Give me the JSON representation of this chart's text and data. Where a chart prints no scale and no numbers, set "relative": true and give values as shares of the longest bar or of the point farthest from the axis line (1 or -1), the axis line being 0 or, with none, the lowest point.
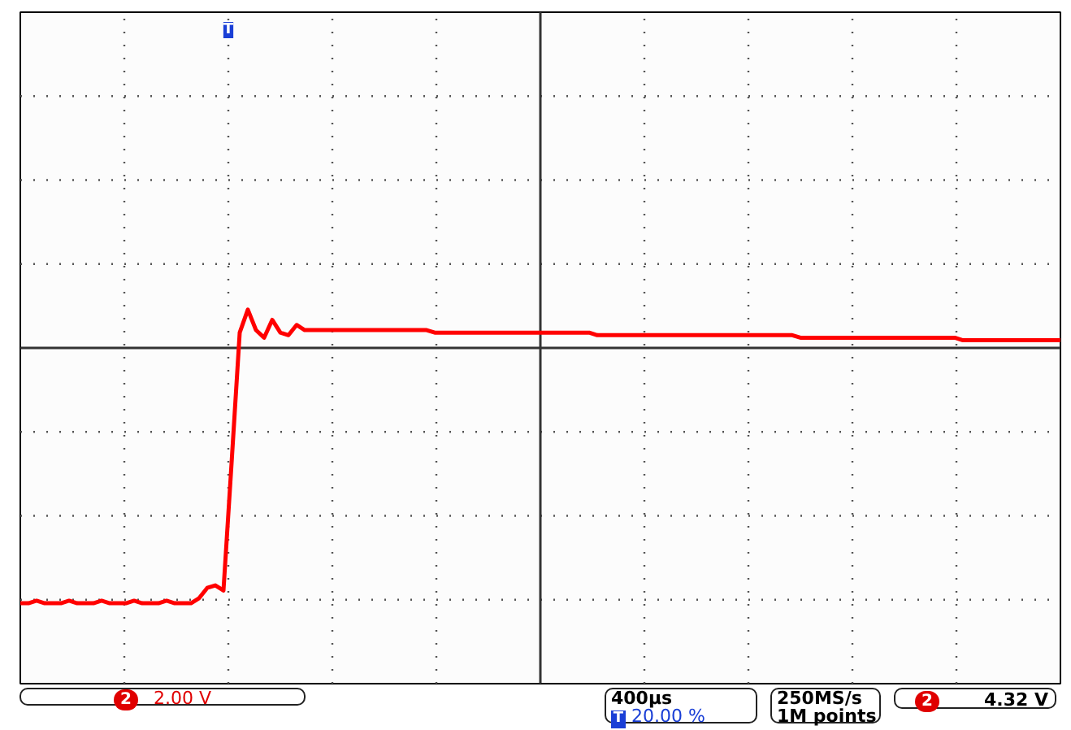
{
  "chart_data": {
    "type": "line",
    "relative": true,
    "grid": true,
    "line_style": "solid",
    "categories": [
      null,
      null,
      null,
      null,
      null,
      null,
      null,
      null,
      null,
      null,
      null,
      null,
      null,
      null,
      null,
      null,
      null,
      null,
      null,
      null,
      null,
      null,
      null,
      null,
      null,
      null,
      null,
      null,
      null,
      null,
      null,
      null,
      null,
      null,
      null,
      null,
      null,
      null,
      null,
      null,
      null,
      null,
      null,
      null,
      null,
      null,
      null,
      null,
      null,
      null,
      null,
      null,
      null,
      null,
      null,
      null,
      null,
      null,
      null,
      null,
      null,
      null,
      null,
      null,
      null,
      null,
      null,
      null,
      null,
      null,
      null,
      null,
      null,
      null,
      null,
      null,
      null,
      null,
      null,
      null,
      null,
      null,
      null,
      null,
      null,
      null,
      null,
      null,
      null,
      null,
      null,
      null,
      null,
      null,
      null,
      null,
      null,
      null,
      null,
      null,
      null,
      null,
      null,
      null,
      null,
      null,
      null,
      null,
      null,
      null,
      null,
      null,
      null,
      null,
      null,
      null,
      null,
      null,
      null,
      null,
      null,
      null,
      null,
      null,
      null,
      null,
      null,
      null,
      null
    ],
    "series": [
      {
        "color": "#ff0000",
        "values": [
          -1.0,
          -1.0,
          -0.99,
          -1.0,
          -1.0,
          -1.0,
          -0.99,
          -1.0,
          -1.0,
          -1.0,
          -0.99,
          -1.0,
          -1.0,
          -1.0,
          -0.99,
          -1.0,
          -1.0,
          -1.0,
          -0.99,
          -1.0,
          -1.0,
          -1.0,
          -0.98,
          -0.94,
          -0.93,
          -0.95,
          -0.45,
          0.06,
          0.15,
          0.07,
          0.04,
          0.11,
          0.06,
          0.05,
          0.09,
          0.07,
          0.07,
          0.07,
          0.07,
          0.07,
          0.07,
          0.07,
          0.07,
          0.07,
          0.07,
          0.07,
          0.07,
          0.07,
          0.07,
          0.07,
          0.07,
          0.06,
          0.06,
          0.06,
          0.06,
          0.06,
          0.06,
          0.06,
          0.06,
          0.06,
          0.06,
          0.06,
          0.06,
          0.06,
          0.06,
          0.06,
          0.06,
          0.06,
          0.06,
          0.06,
          0.06,
          0.05,
          0.05,
          0.05,
          0.05,
          0.05,
          0.05,
          0.05,
          0.05,
          0.05,
          0.05,
          0.05,
          0.05,
          0.05,
          0.05,
          0.05,
          0.05,
          0.05,
          0.05,
          0.05,
          0.05,
          0.05,
          0.05,
          0.05,
          0.05,
          0.05,
          0.04,
          0.04,
          0.04,
          0.04,
          0.04,
          0.04,
          0.04,
          0.04,
          0.04,
          0.04,
          0.04,
          0.04,
          0.04,
          0.04,
          0.04,
          0.04,
          0.04,
          0.04,
          0.04,
          0.04,
          0.03,
          0.03,
          0.03,
          0.03,
          0.03,
          0.03,
          0.03,
          0.03,
          0.03,
          0.03,
          0.03,
          0.03,
          0.03
        ]
      }
    ],
    "annotations": [
      "T",
      "2",
      "2.00 V",
      "400µs",
      "20.00 %",
      "250MS/s",
      "1M points",
      "2",
      "4.32 V"
    ]
  }
}
